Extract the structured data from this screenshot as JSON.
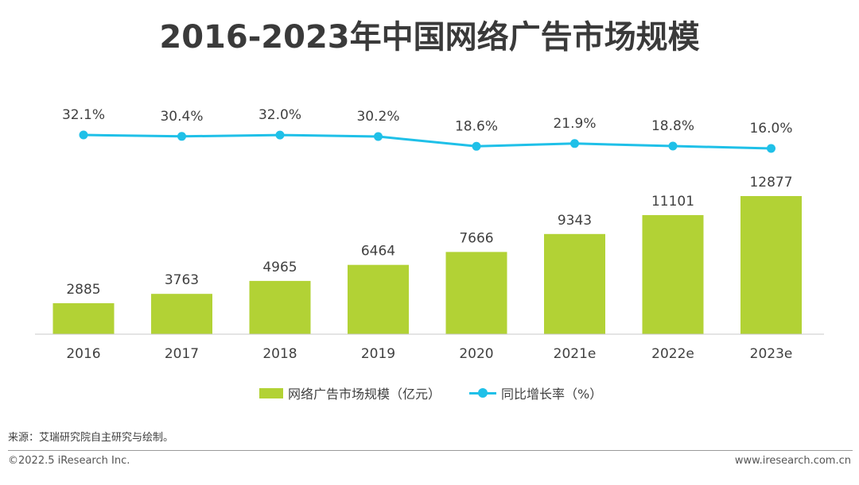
{
  "title": "2016-2023年中国网络广告市场规模",
  "chart_data": {
    "type": "bar",
    "title": "2016-2023年中国网络广告市场规模",
    "categories": [
      "2016",
      "2017",
      "2018",
      "2019",
      "2020",
      "2021e",
      "2022e",
      "2023e"
    ],
    "series": [
      {
        "name": "网络广告市场规模（亿元）",
        "type": "bar",
        "color": "#b2d235",
        "values": [
          2885,
          3763,
          4965,
          6464,
          7666,
          9343,
          11101,
          12877
        ],
        "value_labels": [
          "2885",
          "3763",
          "4965",
          "6464",
          "7666",
          "9343",
          "11101",
          "12877"
        ]
      },
      {
        "name": "同比增长率（%）",
        "type": "line",
        "color": "#1fc0e8",
        "values": [
          32.1,
          30.4,
          32.0,
          30.2,
          18.6,
          21.9,
          18.8,
          16.0
        ],
        "value_labels": [
          "32.1%",
          "30.4%",
          "32.0%",
          "30.2%",
          "18.6%",
          "21.9%",
          "18.8%",
          "16.0%"
        ]
      }
    ],
    "legend_position": "bottom",
    "grid": false
  },
  "legend": {
    "bar_label": "网络广告市场规模（亿元）",
    "line_label": "同比增长率（%）"
  },
  "source": "来源：艾瑞研究院自主研究与绘制。",
  "footer": {
    "copyright": "©2022.5 iResearch Inc.",
    "website": "www.iresearch.com.cn"
  }
}
